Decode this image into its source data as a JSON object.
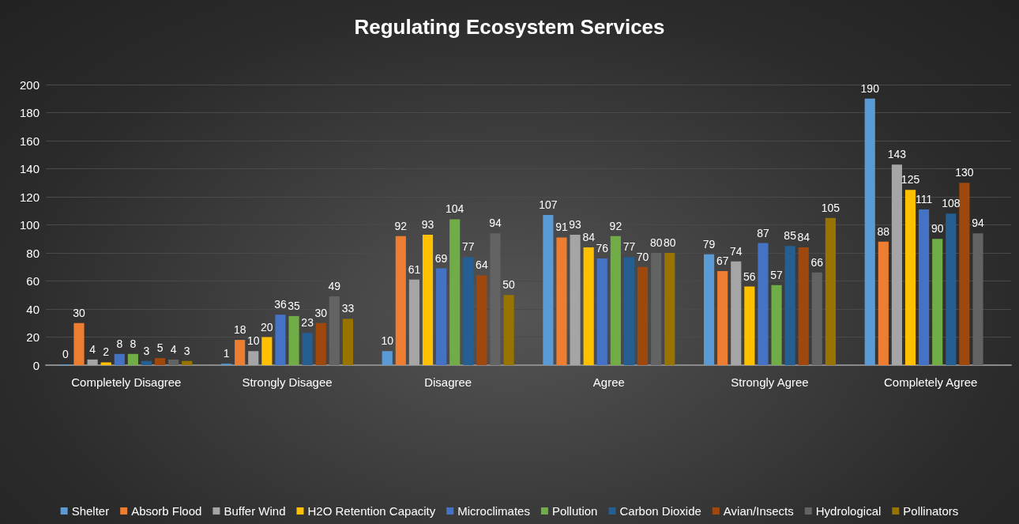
{
  "chart_data": {
    "type": "bar",
    "title": "Regulating Ecosystem Services",
    "categories": [
      "Completely Disagree",
      "Strongly Disagee",
      "Disagree",
      "Agree",
      "Strongly Agree",
      "Completely Agree"
    ],
    "series": [
      {
        "name": "Shelter",
        "color": "#5b9bd5",
        "values": [
          0,
          1,
          10,
          107,
          79,
          190
        ]
      },
      {
        "name": "Absorb Flood",
        "color": "#ed7d31",
        "values": [
          30,
          18,
          92,
          91,
          67,
          88
        ]
      },
      {
        "name": "Buffer Wind",
        "color": "#a5a5a5",
        "values": [
          4,
          10,
          61,
          93,
          74,
          143
        ]
      },
      {
        "name": "H2O Retention Capacity",
        "color": "#ffc000",
        "values": [
          2,
          20,
          93,
          84,
          56,
          125
        ]
      },
      {
        "name": "Microclimates",
        "color": "#4472c4",
        "values": [
          8,
          36,
          69,
          76,
          87,
          111
        ]
      },
      {
        "name": "Pollution",
        "color": "#70ad47",
        "values": [
          8,
          35,
          104,
          92,
          57,
          90
        ]
      },
      {
        "name": "Carbon Dioxide",
        "color": "#255e91",
        "values": [
          3,
          23,
          77,
          77,
          85,
          108
        ]
      },
      {
        "name": "Avian/Insects",
        "color": "#9e480e",
        "values": [
          5,
          30,
          64,
          70,
          84,
          130
        ]
      },
      {
        "name": "Hydrological",
        "color": "#636363",
        "values": [
          4,
          49,
          94,
          80,
          66,
          94
        ]
      },
      {
        "name": "Pollinators",
        "color": "#997300",
        "values": [
          3,
          33,
          50,
          80,
          105,
          null
        ]
      }
    ],
    "ylim": [
      0,
      200
    ],
    "yticks": [
      0,
      20,
      40,
      60,
      80,
      100,
      120,
      140,
      160,
      180,
      200
    ],
    "grid": "y",
    "legend": "bottom",
    "data_labels": true
  }
}
